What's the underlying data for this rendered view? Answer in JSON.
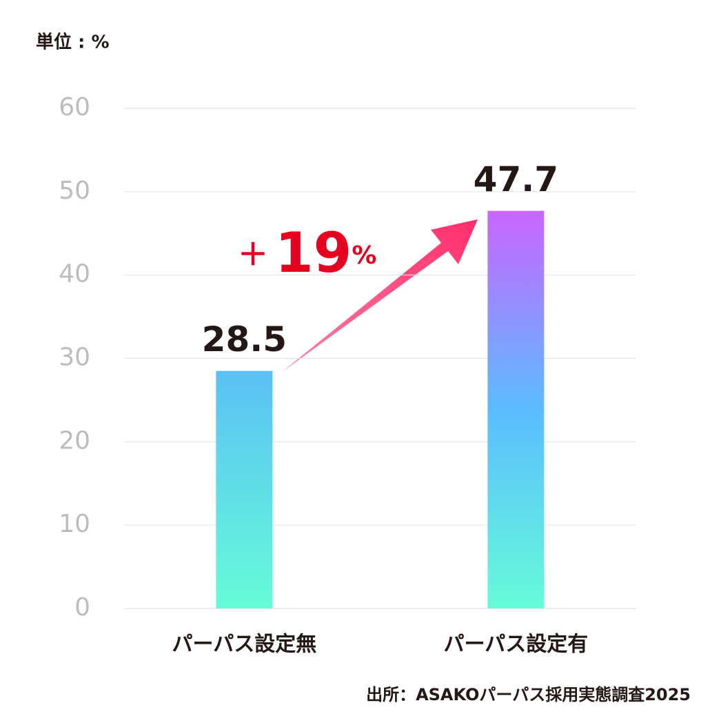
{
  "chart_data": {
    "type": "bar",
    "unit_label": "単位 : %",
    "categories": [
      "パーパス設定無",
      "パーパス設定有"
    ],
    "values": [
      28.5,
      47.7
    ],
    "gradients": [
      [
        "#5bc0f5",
        "#66fcd8"
      ],
      [
        "#c965ff",
        "#5bbcff",
        "#66fcd8"
      ]
    ],
    "annotation": [
      "＋",
      "19",
      "%"
    ],
    "source": "出所：ASAKOパーパス採用実態調査2025",
    "ylim": [
      0,
      60
    ],
    "yticks": [
      0,
      10,
      20,
      30,
      40,
      50,
      60
    ],
    "grid": true
  }
}
